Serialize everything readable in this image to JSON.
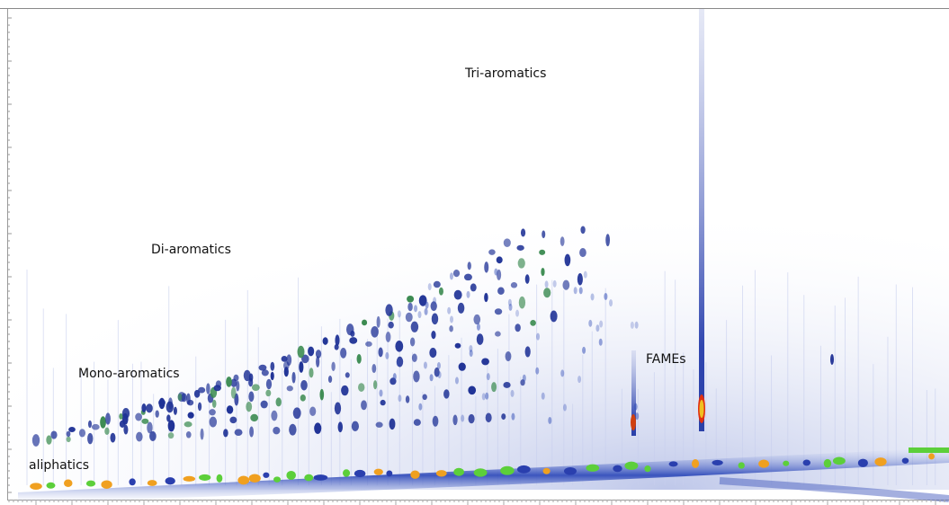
{
  "annotations": [
    "Tri-aromatics",
    "Di-aromatics",
    "Mono-aromatics",
    "FAMEs",
    "aliphatics"
  ]
}
